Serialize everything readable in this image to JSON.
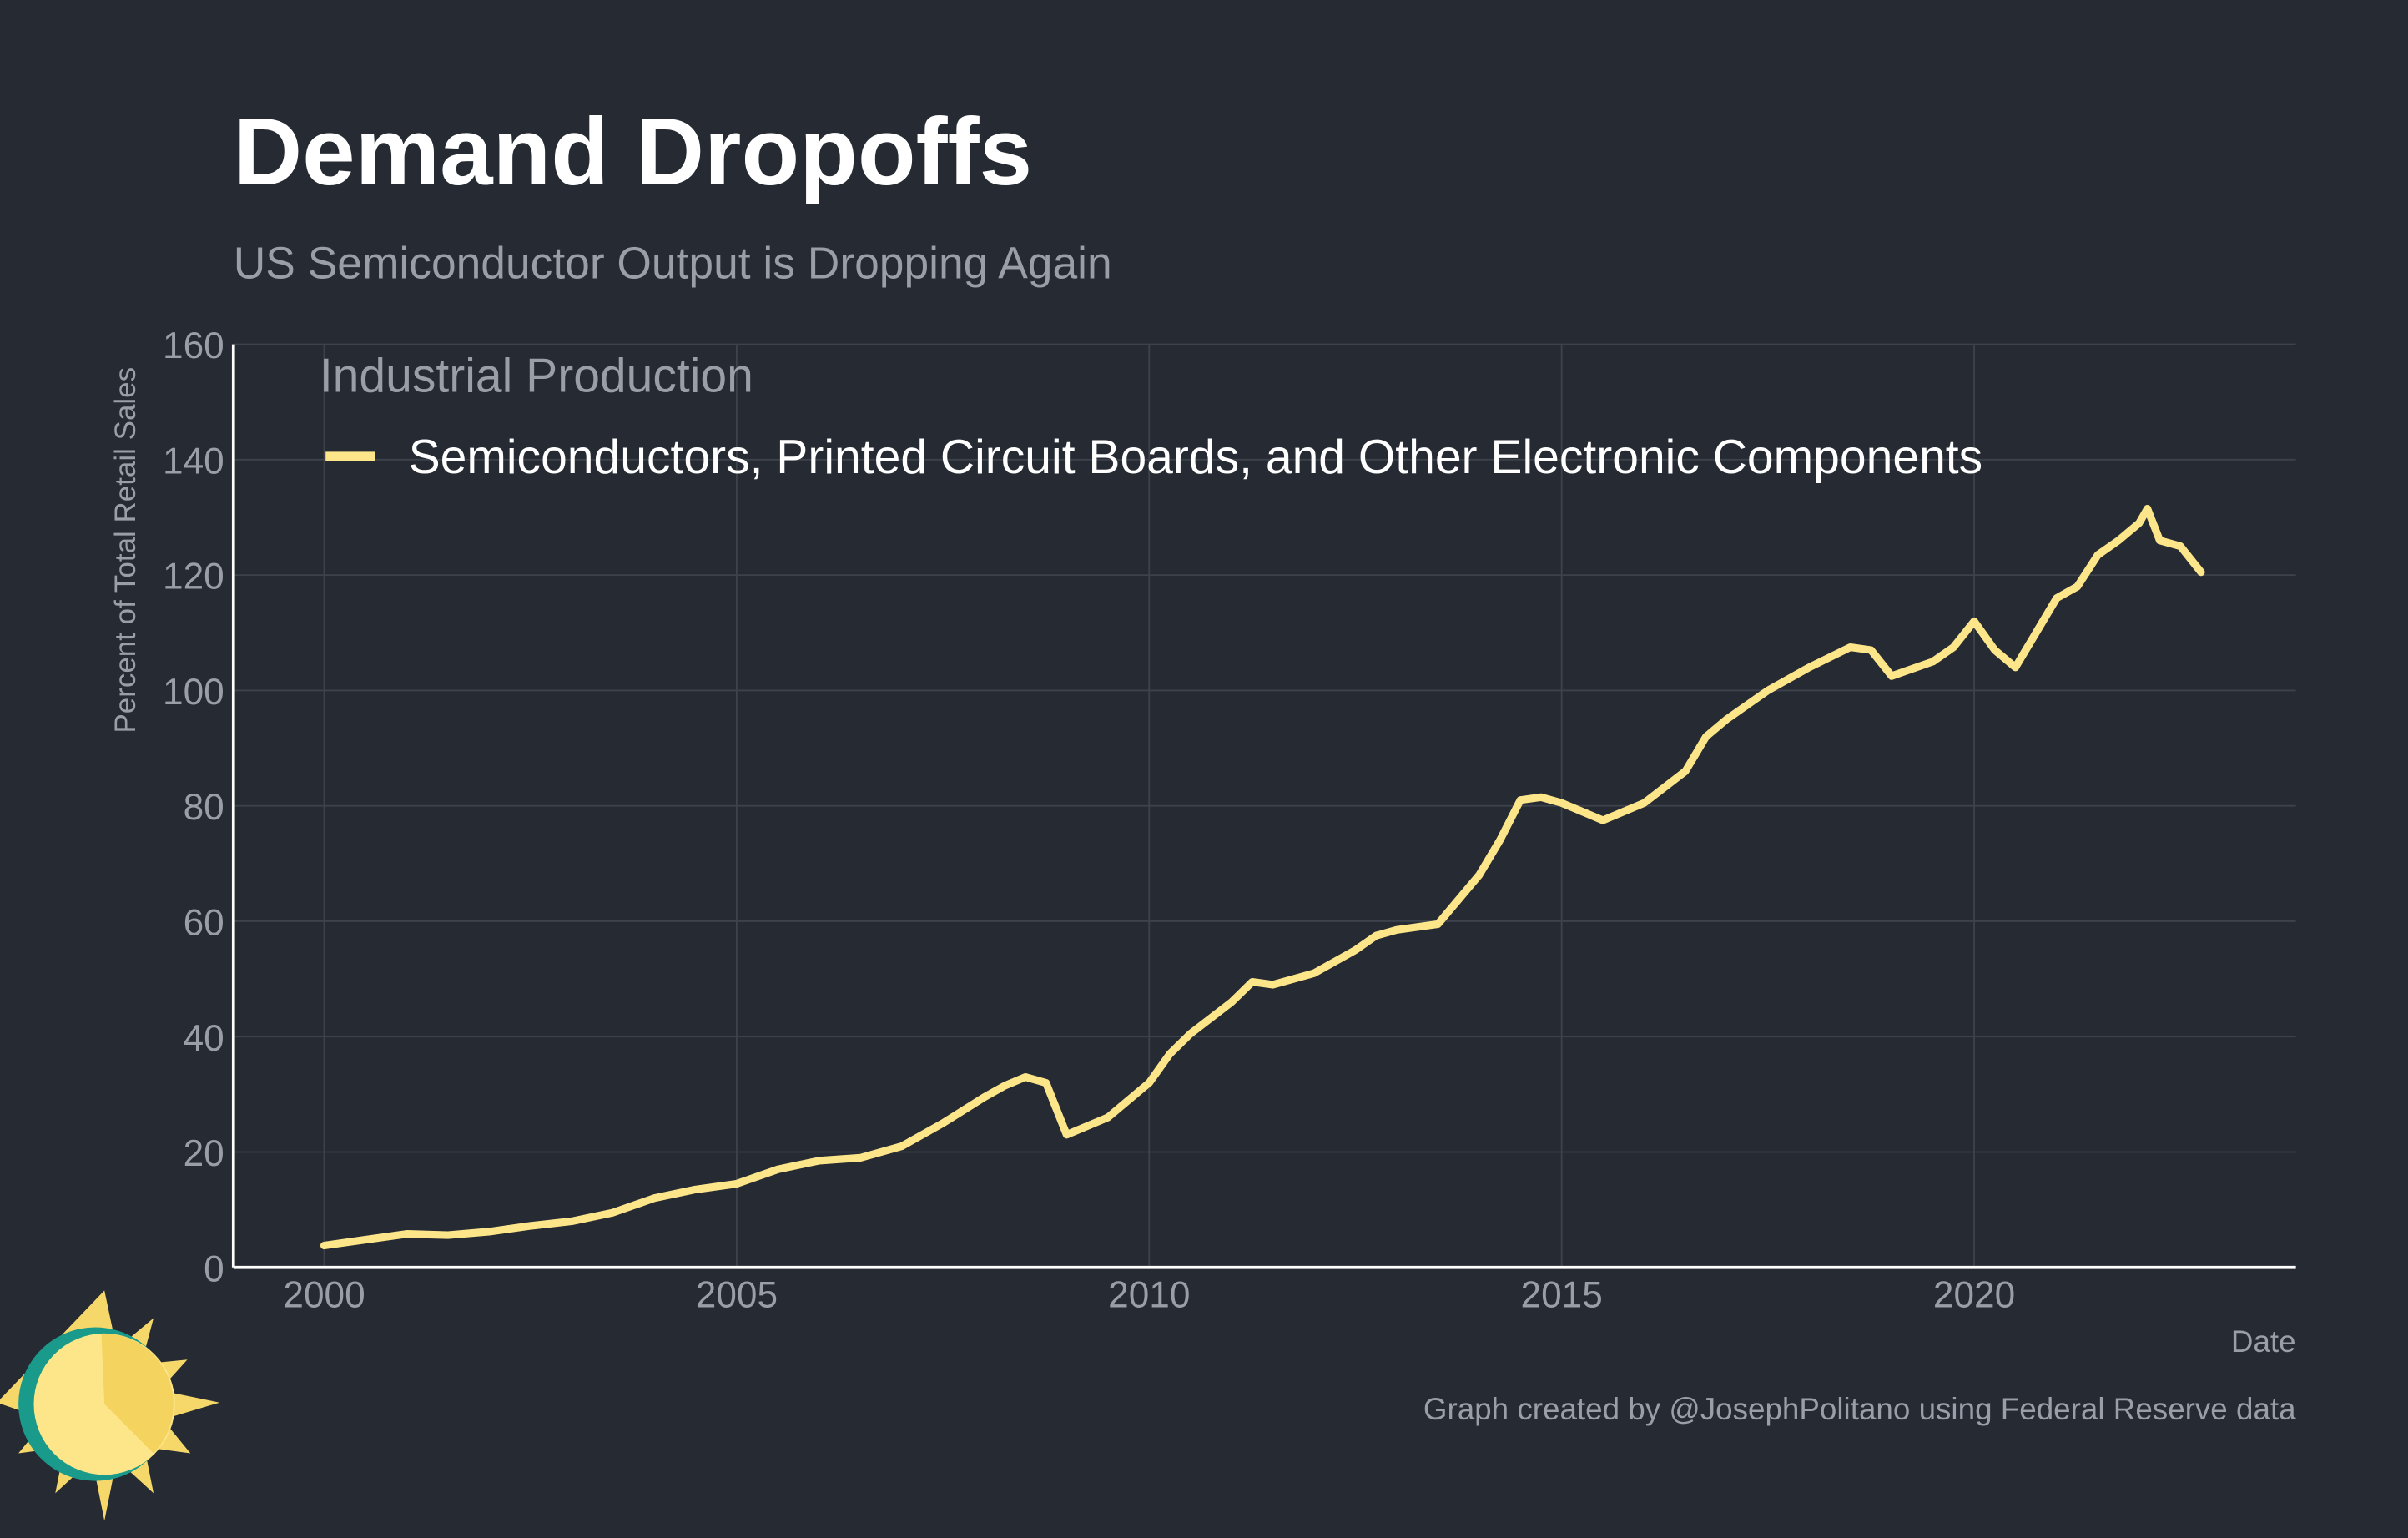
{
  "chart_data": {
    "type": "line",
    "title": "Demand Dropoffs",
    "subtitle": "US Semiconductor Output is Dropping Again",
    "ylabel": "Percent of Total Retail Sales",
    "xlabel": "Date",
    "legend_title": "Industrial Production",
    "caption": "Graph created by @JosephPolitano using Federal Reserve data",
    "x": [
      2000,
      2000.5,
      2001,
      2001.5,
      2002,
      2002.5,
      2003,
      2003.5,
      2004,
      2004.5,
      2005,
      2005.5,
      2006,
      2006.5,
      2007,
      2007.5,
      2008,
      2008.25,
      2008.5,
      2008.75,
      2009,
      2009.5,
      2010,
      2010.25,
      2010.5,
      2011,
      2011.25,
      2011.5,
      2012,
      2012.5,
      2012.75,
      2013,
      2013.5,
      2014,
      2014.25,
      2014.5,
      2014.75,
      2015,
      2015.5,
      2016,
      2016.5,
      2016.75,
      2017,
      2017.5,
      2018,
      2018.5,
      2018.75,
      2019,
      2019.5,
      2019.75,
      2020,
      2020.25,
      2020.5,
      2020.75,
      2021,
      2021.25,
      2021.5,
      2021.75,
      2022,
      2022.1,
      2022.25,
      2022.5,
      2022.75
    ],
    "series": [
      {
        "name": "Semiconductors, Printed Circuit Boards, and Other Electronic Components",
        "color": "#fde68a",
        "values": [
          3.8,
          4.8,
          5.8,
          5.6,
          6.2,
          7.2,
          8.0,
          9.5,
          12,
          13.5,
          14.5,
          17,
          18.5,
          19,
          21,
          25,
          29.5,
          31.5,
          33,
          32,
          23,
          26,
          32,
          37,
          40.5,
          46,
          49.5,
          49,
          51,
          55,
          57.5,
          58.5,
          59.5,
          68,
          74,
          81,
          81.5,
          80.5,
          77.5,
          80.5,
          86,
          92,
          95,
          100,
          104,
          107.5,
          107,
          102.5,
          105,
          107.5,
          112,
          107,
          104,
          110,
          116,
          118,
          123.5,
          126,
          129,
          131.5,
          126,
          125,
          120.5
        ]
      }
    ],
    "xlim": [
      1998.9,
      2023.9
    ],
    "xticks": [
      2000,
      2005,
      2010,
      2015,
      2020
    ],
    "ylim": [
      0,
      160
    ],
    "yticks": [
      0,
      20,
      40,
      60,
      80,
      100,
      120,
      140,
      160
    ],
    "grid": true
  }
}
